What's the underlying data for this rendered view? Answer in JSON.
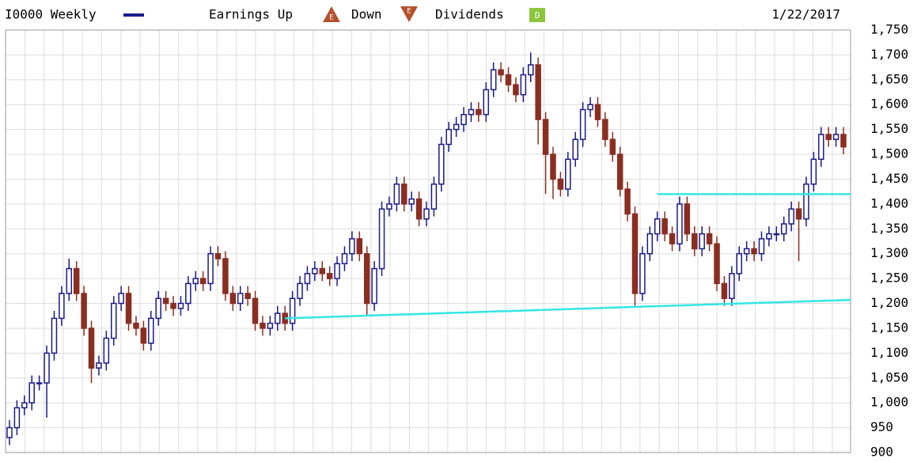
{
  "chart_data": {
    "type": "candlestick",
    "title": "I0000 Weekly",
    "legend": {
      "earnings_up": "Earnings Up",
      "earnings_up_icon": "E",
      "down": "Down",
      "down_icon": "E",
      "dividends": "Dividends",
      "dividends_icon": "D"
    },
    "date": "1/22/2017",
    "up_color": "#1a1a8c",
    "down_color": "#8b2e22",
    "grid": true,
    "ylim": [
      900,
      1750
    ],
    "yticks": [
      900,
      950,
      {
        "value": 1000,
        "label": "1,000"
      },
      {
        "value": 1050,
        "label": "1,050"
      },
      {
        "value": 1100,
        "label": "1,100"
      },
      {
        "value": 1150,
        "label": "1,150"
      },
      {
        "value": 1200,
        "label": "1,200"
      },
      {
        "value": 1250,
        "label": "1,250"
      },
      {
        "value": 1300,
        "label": "1,300"
      },
      {
        "value": 1350,
        "label": "1,350"
      },
      {
        "value": 1400,
        "label": "1,400"
      },
      {
        "value": 1450,
        "label": "1,450"
      },
      {
        "value": 1500,
        "label": "1,500"
      },
      {
        "value": 1550,
        "label": "1,550"
      },
      {
        "value": 1600,
        "label": "1,600"
      },
      {
        "value": 1650,
        "label": "1,650"
      },
      {
        "value": 1700,
        "label": "1,700"
      },
      {
        "value": 1750,
        "label": "1,750"
      }
    ],
    "open": [
      930,
      950,
      990,
      1000,
      1040,
      1040,
      1100,
      1170,
      1220,
      1270,
      1220,
      1150,
      1070,
      1080,
      1130,
      1200,
      1220,
      1160,
      1150,
      1120,
      1170,
      1210,
      1200,
      1190,
      1200,
      1240,
      1250,
      1240,
      1300,
      1290,
      1220,
      1200,
      1220,
      1210,
      1160,
      1150,
      1160,
      1180,
      1160,
      1210,
      1240,
      1260,
      1270,
      1260,
      1250,
      1280,
      1300,
      1330,
      1300,
      1200,
      1270,
      1390,
      1400,
      1440,
      1400,
      1410,
      1370,
      1390,
      1440,
      1520,
      1550,
      1560,
      1580,
      1590,
      1580,
      1630,
      1670,
      1660,
      1640,
      1620,
      1660,
      1680,
      1570,
      1500,
      1450,
      1430,
      1490,
      1530,
      1590,
      1600,
      1570,
      1530,
      1500,
      1430,
      1380,
      1220,
      1300,
      1340,
      1370,
      1340,
      1320,
      1400,
      1340,
      1310,
      1340,
      1320,
      1240,
      1210,
      1260,
      1300,
      1310,
      1300,
      1330,
      1340,
      1340,
      1360,
      1390,
      1370,
      1440,
      1490,
      1540,
      1530,
      1540
    ],
    "high": [
      965,
      1005,
      1015,
      1055,
      1055,
      1115,
      1185,
      1235,
      1290,
      1285,
      1235,
      1165,
      1095,
      1145,
      1215,
      1235,
      1235,
      1175,
      1165,
      1185,
      1225,
      1225,
      1215,
      1215,
      1255,
      1265,
      1265,
      1315,
      1315,
      1305,
      1235,
      1235,
      1235,
      1225,
      1175,
      1175,
      1195,
      1195,
      1225,
      1255,
      1275,
      1285,
      1285,
      1275,
      1295,
      1315,
      1345,
      1345,
      1315,
      1285,
      1405,
      1415,
      1455,
      1455,
      1425,
      1425,
      1405,
      1455,
      1535,
      1565,
      1575,
      1595,
      1605,
      1605,
      1645,
      1685,
      1685,
      1675,
      1655,
      1675,
      1705,
      1695,
      1585,
      1515,
      1465,
      1505,
      1545,
      1605,
      1615,
      1615,
      1585,
      1545,
      1515,
      1445,
      1395,
      1315,
      1355,
      1385,
      1385,
      1355,
      1415,
      1415,
      1355,
      1355,
      1355,
      1335,
      1255,
      1275,
      1315,
      1325,
      1325,
      1345,
      1355,
      1355,
      1375,
      1405,
      1405,
      1455,
      1505,
      1555,
      1555,
      1555,
      1555
    ],
    "low": [
      915,
      935,
      975,
      985,
      1025,
      970,
      1085,
      1155,
      1205,
      1205,
      1135,
      1040,
      1055,
      1065,
      1115,
      1185,
      1145,
      1135,
      1105,
      1105,
      1155,
      1185,
      1175,
      1175,
      1185,
      1225,
      1225,
      1225,
      1275,
      1205,
      1185,
      1185,
      1195,
      1145,
      1135,
      1135,
      1145,
      1145,
      1145,
      1195,
      1225,
      1245,
      1245,
      1235,
      1235,
      1265,
      1285,
      1285,
      1175,
      1185,
      1255,
      1375,
      1385,
      1385,
      1385,
      1355,
      1355,
      1375,
      1425,
      1505,
      1535,
      1545,
      1565,
      1565,
      1565,
      1615,
      1645,
      1625,
      1605,
      1605,
      1645,
      1520,
      1420,
      1410,
      1415,
      1415,
      1475,
      1515,
      1575,
      1555,
      1515,
      1485,
      1415,
      1365,
      1195,
      1205,
      1285,
      1325,
      1325,
      1305,
      1305,
      1325,
      1295,
      1295,
      1305,
      1225,
      1195,
      1195,
      1245,
      1285,
      1285,
      1285,
      1315,
      1325,
      1325,
      1345,
      1285,
      1355,
      1425,
      1475,
      1515,
      1515,
      1500
    ],
    "close": [
      950,
      990,
      1000,
      1040,
      1040,
      1100,
      1170,
      1220,
      1270,
      1220,
      1150,
      1070,
      1080,
      1130,
      1200,
      1220,
      1160,
      1150,
      1120,
      1170,
      1210,
      1200,
      1190,
      1200,
      1240,
      1250,
      1240,
      1300,
      1290,
      1220,
      1200,
      1220,
      1210,
      1160,
      1150,
      1160,
      1180,
      1160,
      1210,
      1240,
      1260,
      1270,
      1260,
      1250,
      1280,
      1300,
      1330,
      1300,
      1200,
      1270,
      1390,
      1400,
      1440,
      1400,
      1410,
      1370,
      1390,
      1440,
      1520,
      1550,
      1560,
      1580,
      1590,
      1580,
      1630,
      1670,
      1660,
      1640,
      1620,
      1660,
      1680,
      1570,
      1500,
      1450,
      1430,
      1490,
      1530,
      1590,
      1600,
      1570,
      1530,
      1500,
      1430,
      1380,
      1220,
      1300,
      1340,
      1370,
      1340,
      1320,
      1400,
      1340,
      1310,
      1340,
      1320,
      1240,
      1210,
      1260,
      1300,
      1310,
      1300,
      1330,
      1340,
      1340,
      1360,
      1390,
      1370,
      1440,
      1490,
      1540,
      1530,
      1540,
      1515
    ],
    "trend_lines": [
      {
        "color": "#33e6e6",
        "x": [
          37,
          113
        ],
        "y": [
          1170,
          1207
        ]
      },
      {
        "color": "#33e6e6",
        "x": [
          87,
          113
        ],
        "y": [
          1420,
          1420
        ]
      }
    ]
  }
}
